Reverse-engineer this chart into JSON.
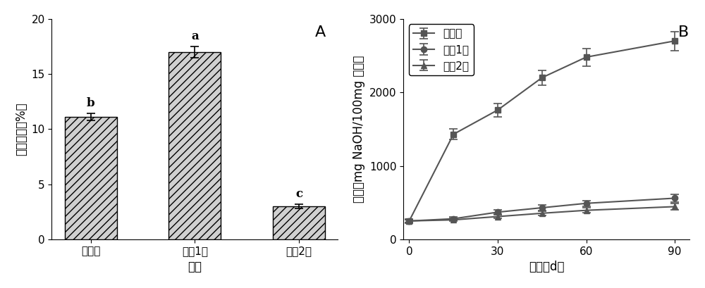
{
  "bar_categories": [
    "对照组",
    "样品1组",
    "样品2组"
  ],
  "bar_values": [
    11.1,
    17.0,
    3.0
  ],
  "bar_errors": [
    0.3,
    0.5,
    0.2
  ],
  "bar_labels": [
    "b",
    "a",
    "c"
  ],
  "bar_xlabel": "组别",
  "bar_ylabel": "水分含量（%）",
  "bar_ylim": [
    0,
    20
  ],
  "bar_yticks": [
    0,
    5,
    10,
    15,
    20
  ],
  "panel_A_label": "A",
  "line_x": [
    0,
    15,
    30,
    45,
    60,
    90
  ],
  "line_control": [
    250,
    1430,
    1760,
    2200,
    2480,
    2700
  ],
  "line_control_err": [
    30,
    70,
    90,
    100,
    120,
    130
  ],
  "line_sample1": [
    250,
    280,
    370,
    430,
    490,
    560
  ],
  "line_sample1_err": [
    20,
    25,
    30,
    35,
    40,
    50
  ],
  "line_sample2": [
    250,
    265,
    310,
    355,
    395,
    445
  ],
  "line_sample2_err": [
    20,
    20,
    25,
    30,
    35,
    40
  ],
  "line_xlabel": "天数（d）",
  "line_ylabel": "酸价（mg NaOH/100mg 米糠）",
  "line_ylim": [
    0,
    3000
  ],
  "line_yticks": [
    0,
    1000,
    2000,
    3000
  ],
  "line_xticks": [
    0,
    30,
    60,
    90
  ],
  "legend_labels": [
    "对照组",
    "样品1组",
    "样品2组"
  ],
  "panel_B_label": "B",
  "hatch_pattern": "///",
  "bar_facecolor": "#d0d0d0",
  "bar_edgecolor": "#000000",
  "line_color": "#555555",
  "background_color": "#ffffff",
  "fontsize_tick": 11,
  "fontsize_label": 12,
  "fontsize_letter": 14
}
